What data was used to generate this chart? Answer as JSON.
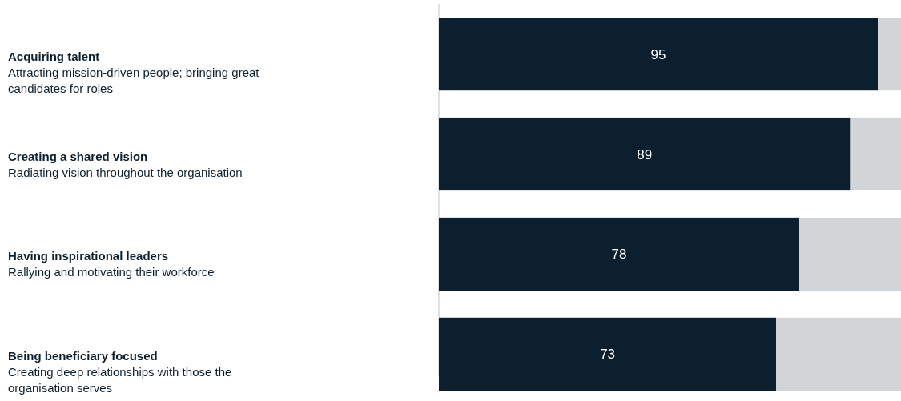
{
  "chart_data": {
    "type": "bar",
    "orientation": "horizontal",
    "stacked": true,
    "categories": [
      "Acquiring talent\nAttracting mission-driven people; bringing great candidates for roles",
      "Creating a shared vision\nRadiating vision throughout the organisation",
      "Having inspirational leaders\nRallying and motivating their workforce",
      "Being beneficiary focused\nCreating deep relationships with those the organisation serves"
    ],
    "series": [
      {
        "color": "#0b1f2e",
        "values": [
          95,
          89,
          78,
          73
        ],
        "value_labels": [
          "95",
          "89",
          "78",
          "73"
        ]
      },
      {
        "color": "#d1d5d7",
        "values": [
          5,
          11,
          22,
          27
        ]
      }
    ]
  }
}
